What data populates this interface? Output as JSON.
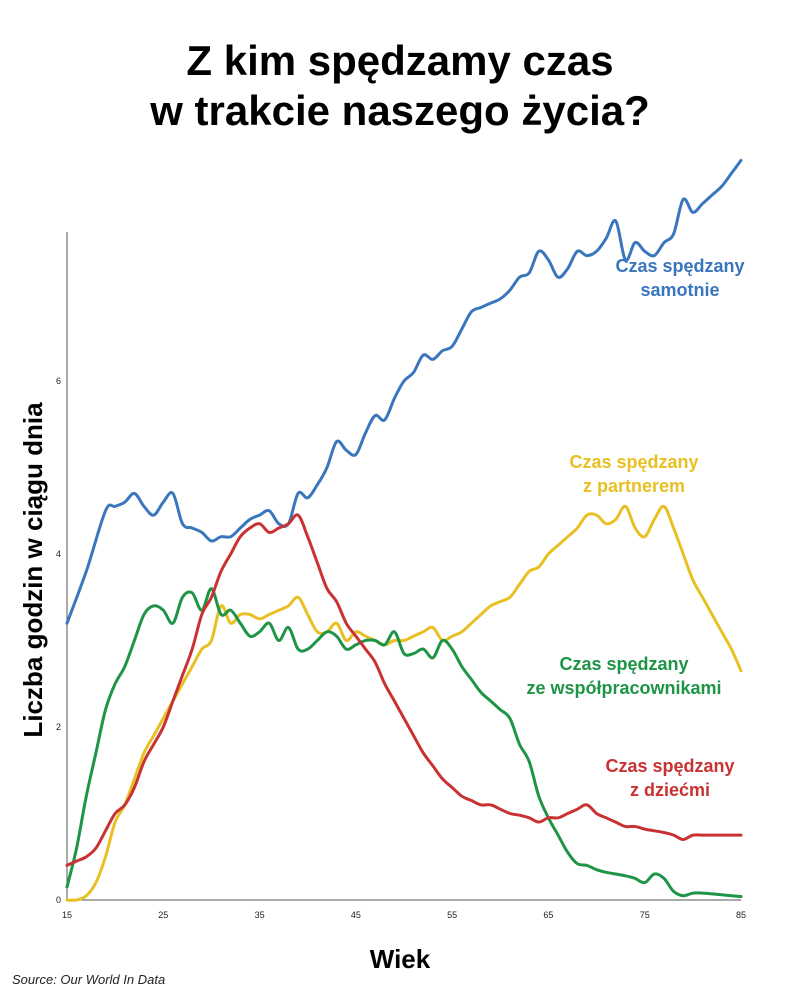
{
  "title_line1": "Z kim spędzamy czas",
  "title_line2": "w trakcie naszego życia?",
  "source": "Source: Our World In Data",
  "chart_data": {
    "type": "line",
    "xlabel": "Wiek",
    "ylabel": "Liczba godzin w ciągu dnia",
    "xlim": [
      15,
      85
    ],
    "ylim": [
      0,
      7.8
    ],
    "xticks": [
      15,
      25,
      35,
      45,
      55,
      65,
      75,
      85
    ],
    "yticks": [
      0,
      2,
      4,
      6
    ],
    "grid": false,
    "series": [
      {
        "name": "Czas spędzany samotnie",
        "label_lines": [
          "Czas spędzany",
          "samotnie"
        ],
        "color": "#3a76bd",
        "x": [
          15,
          17,
          19,
          20,
          21,
          22,
          23,
          24,
          25,
          26,
          27,
          28,
          29,
          30,
          31,
          32,
          33,
          34,
          35,
          36,
          37,
          38,
          39,
          40,
          41,
          42,
          43,
          44,
          45,
          46,
          47,
          48,
          49,
          50,
          51,
          52,
          53,
          54,
          55,
          56,
          57,
          58,
          59,
          60,
          61,
          62,
          63,
          64,
          65,
          66,
          67,
          68,
          69,
          70,
          71,
          72,
          73,
          74,
          75,
          76,
          77,
          78,
          79,
          80,
          81,
          82,
          83,
          84,
          85
        ],
        "values": [
          3.2,
          3.8,
          4.5,
          4.55,
          4.6,
          4.7,
          4.55,
          4.45,
          4.6,
          4.7,
          4.35,
          4.3,
          4.25,
          4.15,
          4.2,
          4.2,
          4.3,
          4.4,
          4.45,
          4.5,
          4.35,
          4.35,
          4.7,
          4.65,
          4.8,
          5.0,
          5.3,
          5.2,
          5.15,
          5.4,
          5.6,
          5.55,
          5.8,
          6.0,
          6.1,
          6.3,
          6.25,
          6.35,
          6.4,
          6.6,
          6.8,
          6.85,
          6.9,
          6.95,
          7.05,
          7.2,
          7.25,
          7.5,
          7.4,
          7.2,
          7.3,
          7.5,
          7.45,
          7.5,
          7.65,
          7.85,
          7.4,
          7.6,
          7.5,
          7.45,
          7.6,
          7.7,
          8.1,
          7.95,
          8.05,
          8.15,
          8.25,
          8.4,
          8.55
        ]
      },
      {
        "name": "Czas spędzany z partnerem",
        "label_lines": [
          "Czas spędzany",
          "z partnerem"
        ],
        "color": "#e9c024",
        "x": [
          15,
          16,
          17,
          18,
          19,
          20,
          21,
          22,
          23,
          24,
          25,
          26,
          27,
          28,
          29,
          30,
          31,
          32,
          33,
          34,
          35,
          36,
          37,
          38,
          39,
          40,
          41,
          42,
          43,
          44,
          45,
          46,
          47,
          48,
          49,
          50,
          51,
          52,
          53,
          54,
          55,
          56,
          57,
          58,
          59,
          60,
          61,
          62,
          63,
          64,
          65,
          66,
          67,
          68,
          69,
          70,
          71,
          72,
          73,
          74,
          75,
          76,
          77,
          78,
          79,
          80,
          81,
          82,
          83,
          84,
          85
        ],
        "values": [
          0,
          0,
          0.05,
          0.2,
          0.5,
          0.9,
          1.1,
          1.4,
          1.7,
          1.9,
          2.1,
          2.3,
          2.5,
          2.7,
          2.9,
          3.0,
          3.4,
          3.2,
          3.3,
          3.3,
          3.25,
          3.3,
          3.35,
          3.4,
          3.5,
          3.3,
          3.1,
          3.1,
          3.2,
          3.0,
          3.1,
          3.05,
          3.0,
          2.95,
          3.0,
          3.0,
          3.05,
          3.1,
          3.15,
          3.0,
          3.05,
          3.1,
          3.2,
          3.3,
          3.4,
          3.45,
          3.5,
          3.65,
          3.8,
          3.85,
          4.0,
          4.1,
          4.2,
          4.3,
          4.45,
          4.45,
          4.35,
          4.4,
          4.55,
          4.3,
          4.2,
          4.4,
          4.55,
          4.3,
          4.0,
          3.7,
          3.5,
          3.3,
          3.1,
          2.9,
          2.65
        ]
      },
      {
        "name": "Czas spędzany ze współpracownikami",
        "label_lines": [
          "Czas spędzany",
          "ze współpracownikami"
        ],
        "color": "#1e9447",
        "x": [
          15,
          16,
          17,
          18,
          19,
          20,
          21,
          22,
          23,
          24,
          25,
          26,
          27,
          28,
          29,
          30,
          31,
          32,
          33,
          34,
          35,
          36,
          37,
          38,
          39,
          40,
          41,
          42,
          43,
          44,
          45,
          46,
          47,
          48,
          49,
          50,
          51,
          52,
          53,
          54,
          55,
          56,
          57,
          58,
          59,
          60,
          61,
          62,
          63,
          64,
          65,
          66,
          67,
          68,
          69,
          70,
          71,
          72,
          73,
          74,
          75,
          76,
          77,
          78,
          79,
          80,
          81,
          82,
          83,
          84,
          85
        ],
        "values": [
          0.15,
          0.6,
          1.2,
          1.7,
          2.2,
          2.5,
          2.7,
          3.0,
          3.3,
          3.4,
          3.35,
          3.2,
          3.5,
          3.55,
          3.35,
          3.6,
          3.3,
          3.35,
          3.2,
          3.05,
          3.1,
          3.2,
          3.0,
          3.15,
          2.9,
          2.9,
          3.0,
          3.1,
          3.05,
          2.9,
          2.95,
          3.0,
          3.0,
          2.95,
          3.1,
          2.85,
          2.85,
          2.9,
          2.8,
          3.0,
          2.9,
          2.7,
          2.55,
          2.4,
          2.3,
          2.2,
          2.1,
          1.8,
          1.6,
          1.2,
          0.95,
          0.75,
          0.55,
          0.42,
          0.4,
          0.35,
          0.32,
          0.3,
          0.28,
          0.25,
          0.2,
          0.3,
          0.25,
          0.1,
          0.05,
          0.08,
          0.08,
          0.07,
          0.06,
          0.05,
          0.04
        ]
      },
      {
        "name": "Czas spędzany z dziećmi",
        "label_lines": [
          "Czas spędzany",
          "z dziećmi"
        ],
        "color": "#c93232",
        "x": [
          15,
          16,
          17,
          18,
          19,
          20,
          21,
          22,
          23,
          24,
          25,
          26,
          27,
          28,
          29,
          30,
          31,
          32,
          33,
          34,
          35,
          36,
          37,
          38,
          39,
          40,
          41,
          42,
          43,
          44,
          45,
          46,
          47,
          48,
          49,
          50,
          51,
          52,
          53,
          54,
          55,
          56,
          57,
          58,
          59,
          60,
          61,
          62,
          63,
          64,
          65,
          66,
          67,
          68,
          69,
          70,
          71,
          72,
          73,
          74,
          75,
          76,
          77,
          78,
          79,
          80,
          81,
          82,
          83,
          84,
          85
        ],
        "values": [
          0.4,
          0.45,
          0.5,
          0.6,
          0.8,
          1.0,
          1.1,
          1.3,
          1.6,
          1.8,
          2.0,
          2.3,
          2.6,
          2.9,
          3.3,
          3.5,
          3.8,
          4.0,
          4.2,
          4.3,
          4.35,
          4.25,
          4.3,
          4.35,
          4.45,
          4.2,
          3.9,
          3.6,
          3.45,
          3.2,
          3.05,
          2.9,
          2.75,
          2.5,
          2.3,
          2.1,
          1.9,
          1.7,
          1.55,
          1.4,
          1.3,
          1.2,
          1.15,
          1.1,
          1.1,
          1.05,
          1.0,
          0.98,
          0.95,
          0.9,
          0.95,
          0.95,
          1.0,
          1.05,
          1.1,
          1.0,
          0.95,
          0.9,
          0.85,
          0.85,
          0.82,
          0.8,
          0.78,
          0.75,
          0.7,
          0.75,
          0.75,
          0.75,
          0.75,
          0.75,
          0.75
        ]
      }
    ]
  }
}
